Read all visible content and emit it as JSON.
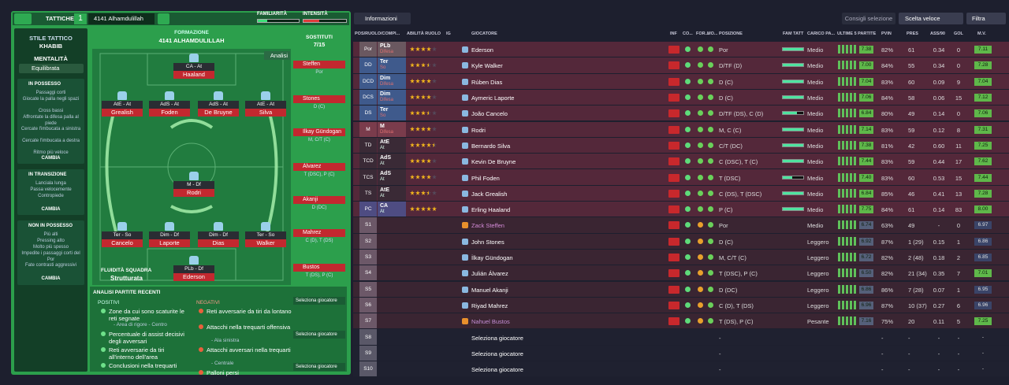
{
  "header": {
    "tab": "TATTICHE",
    "slot": "1",
    "tactic": "4141 Alhamdulillah",
    "familiarity": "FAMILIARITÀ",
    "intensity": "INTENSITÀ"
  },
  "sidebar": {
    "style_label": "STILE TATTICO",
    "style": "KHABIB",
    "mentality_label": "MENTALITÀ",
    "mentality": "Equilibrata",
    "sections": [
      {
        "title": "IN POSSESSO",
        "items": [
          "Passaggi corti",
          "Giocate la palla negli spazi",
          "Cross bassi",
          "Affrontate la difesa palla al piede",
          "Cercate l'imbucata a sinistra",
          "Cercate l'imbucata a destra",
          "Ritmo più veloce"
        ],
        "button": "CAMBIA"
      },
      {
        "title": "IN TRANSIZIONE",
        "items": [
          "Lanciala lunga",
          "Passa velocemente",
          "Contropiede"
        ],
        "button": "CAMBIA"
      },
      {
        "title": "NON IN POSSESSO",
        "items": [
          "Più alti",
          "Pressing alto",
          "Molto più spesso",
          "Impedite i passaggi corti del Por",
          "Fate contrasti aggressivi"
        ],
        "button": "CAMBIA"
      }
    ]
  },
  "pitch": {
    "label": "FORMAZIONE",
    "name": "4141 ALHAMDULILLAH",
    "analysis": "Analisi",
    "subs_label": "SOSTITUTI",
    "subs_count": "7/15",
    "fluidity_label": "FLUIDITÀ SQUADRA",
    "fluidity": "Strutturata",
    "players": [
      {
        "label": "CA - At",
        "name": "Haaland"
      },
      {
        "label": "AtE - At",
        "name": "Grealish"
      },
      {
        "label": "AdS - At",
        "name": "Foden"
      },
      {
        "label": "AdS - At",
        "name": "De Bruyne"
      },
      {
        "label": "AtE - At",
        "name": "Silva"
      },
      {
        "label": "M - Df",
        "name": "Rodri"
      },
      {
        "label": "Ter - So",
        "name": "Cancelo"
      },
      {
        "label": "Dim - Df",
        "name": "Laporte"
      },
      {
        "label": "Dim - Df",
        "name": "Dias"
      },
      {
        "label": "Ter - So",
        "name": "Walker"
      },
      {
        "label": "PLb - Df",
        "name": "Ederson"
      }
    ],
    "subs": [
      {
        "name": "Steffen",
        "pos": "Por"
      },
      {
        "name": "Stones",
        "pos": "D (C)"
      },
      {
        "name": "İlkay Gündogan",
        "pos": "M, C/T (C)"
      },
      {
        "name": "Álvarez",
        "pos": "T (DSC), P (C)"
      },
      {
        "name": "Akanji",
        "pos": "D (DC)"
      },
      {
        "name": "Mahrez",
        "pos": "C (D), T (DS)"
      },
      {
        "name": "Bustos",
        "pos": "T (DS), P (C)"
      },
      {
        "name": "Seleziona giocatore"
      },
      {
        "name": "Seleziona giocatore"
      },
      {
        "name": "Seleziona giocatore"
      }
    ]
  },
  "analysis": {
    "title": "ANALISI PARTITE RECENTI",
    "positive_label": "POSITIVI",
    "negative_label": "NEGATIVI",
    "positive": [
      {
        "text": "Zone da cui sono scaturite le reti segnate",
        "sub": "- Area di rigore - Centro"
      },
      {
        "text": "Percentuale di assist decisivi degli avversari"
      },
      {
        "text": "Reti avversarie da tiri all'interno dell'area"
      },
      {
        "text": "Conclusioni nella trequarti"
      }
    ],
    "negative": [
      {
        "text": "Reti avversarie da tiri da lontano"
      },
      {
        "text": "Attacchi nella trequarti offensiva",
        "sub": "- Ala sinistra"
      },
      {
        "text": "Attacchi avversari nella trequarti",
        "sub": "- Centrale"
      },
      {
        "text": "Palloni persi"
      }
    ]
  },
  "toolbar": {
    "info": "Informazioni",
    "advice": "Consigli selezione",
    "quick": "Scelta veloce",
    "filter": "Filtra"
  },
  "table": {
    "columns": [
      "POS/RUOLO/COMPI...",
      "ABILITÀ RUOLO",
      "IG",
      "GIOCATORE",
      "INF",
      "CO...",
      "FOR...",
      "MO...",
      "POSIZIONE",
      "FAM TATT",
      "CARICO PA...",
      "ULTIME 5 PARTITE",
      "PVIN",
      "PRES",
      "ASS/90",
      "GOL",
      "M.V."
    ],
    "rows": [
      {
        "pos": "Por",
        "role": "PLb",
        "duty": "Difesa",
        "ability": 4,
        "player": "Ederson",
        "position": "Por",
        "load": "Medio",
        "form": "7.38",
        "pvin": "82%",
        "pres": "61",
        "ass": "0.34",
        "gol": "0",
        "mv": "7.11"
      },
      {
        "pos": "DD",
        "role": "Ter",
        "duty": "So",
        "ability": 3.5,
        "player": "Kyle Walker",
        "position": "D/TF (D)",
        "load": "Medio",
        "form": "7.00",
        "pvin": "84%",
        "pres": "55",
        "ass": "0.34",
        "gol": "0",
        "mv": "7.28"
      },
      {
        "pos": "DCD",
        "role": "Dim",
        "duty": "Difesa",
        "ability": 4,
        "player": "Rúben Dias",
        "position": "D (C)",
        "load": "Medio",
        "form": "7.04",
        "pvin": "83%",
        "pres": "60",
        "ass": "0.09",
        "gol": "9",
        "mv": "7.04"
      },
      {
        "pos": "DCS",
        "role": "Dim",
        "duty": "Difesa",
        "ability": 4,
        "player": "Aymeric Laporte",
        "position": "D (C)",
        "load": "Medio",
        "form": "7.06",
        "pvin": "84%",
        "pres": "58",
        "ass": "0.06",
        "gol": "15",
        "mv": "7.12"
      },
      {
        "pos": "DS",
        "role": "Ter",
        "duty": "So",
        "ability": 3.5,
        "player": "João Cancelo",
        "position": "D/TF (DS), C (D)",
        "load": "Medio",
        "form": "6.84",
        "pvin": "80%",
        "pres": "49",
        "ass": "0.14",
        "gol": "0",
        "mv": "7.06"
      },
      {
        "pos": "M",
        "role": "M",
        "duty": "Difesa",
        "ability": 4,
        "player": "Rodri",
        "position": "M, C (C)",
        "load": "Medio",
        "form": "7.14",
        "pvin": "83%",
        "pres": "59",
        "ass": "0.12",
        "gol": "8",
        "mv": "7.31"
      },
      {
        "pos": "TD",
        "role": "AtE",
        "duty": "At",
        "ability": 4.5,
        "player": "Bernardo Silva",
        "position": "C/T (DC)",
        "load": "Medio",
        "form": "7.38",
        "pvin": "81%",
        "pres": "42",
        "ass": "0.60",
        "gol": "11",
        "mv": "7.25"
      },
      {
        "pos": "TCD",
        "role": "AdS",
        "duty": "At",
        "ability": 4,
        "player": "Kevin De Bruyne",
        "position": "C (DSC), T (C)",
        "load": "Medio",
        "form": "7.44",
        "pvin": "83%",
        "pres": "59",
        "ass": "0.44",
        "gol": "17",
        "mv": "7.62"
      },
      {
        "pos": "TCS",
        "role": "AdS",
        "duty": "At",
        "ability": 4,
        "player": "Phil Foden",
        "position": "T (DSC)",
        "load": "Medio",
        "form": "7.40",
        "pvin": "83%",
        "pres": "60",
        "ass": "0.53",
        "gol": "15",
        "mv": "7.44"
      },
      {
        "pos": "TS",
        "role": "AtE",
        "duty": "At",
        "ability": 3.5,
        "player": "Jack Grealish",
        "position": "C (DS), T (DSC)",
        "load": "Medio",
        "form": "6.84",
        "pvin": "85%",
        "pres": "46",
        "ass": "0.41",
        "gol": "13",
        "mv": "7.28"
      },
      {
        "pos": "PC",
        "role": "CA",
        "duty": "At",
        "ability": 5,
        "player": "Erling Haaland",
        "position": "P (C)",
        "load": "Medio",
        "form": "7.75",
        "pvin": "84%",
        "pres": "61",
        "ass": "0.14",
        "gol": "83",
        "mv": "8.00"
      },
      {
        "pos": "S1",
        "player": "Zack Steffen",
        "color": "#d58bd8",
        "position": "Por",
        "load": "Medio",
        "form": "6.74",
        "pvin": "63%",
        "pres": "49",
        "ass": "-",
        "gol": "0",
        "mv": "6.97"
      },
      {
        "pos": "S2",
        "player": "John Stones",
        "position": "D (C)",
        "load": "Leggero",
        "form": "6.92",
        "pvin": "87%",
        "pres": "1 (29)",
        "ass": "0.15",
        "gol": "1",
        "mv": "6.86"
      },
      {
        "pos": "S3",
        "player": "İlkay Gündogan",
        "position": "M, C/T (C)",
        "load": "Leggero",
        "form": "6.72",
        "pvin": "82%",
        "pres": "2 (48)",
        "ass": "0.18",
        "gol": "2",
        "mv": "6.85"
      },
      {
        "pos": "S4",
        "player": "Julián Álvarez",
        "position": "T (DSC), P (C)",
        "load": "Leggero",
        "form": "6.50",
        "pvin": "82%",
        "pres": "21 (34)",
        "ass": "0.35",
        "gol": "7",
        "mv": "7.01"
      },
      {
        "pos": "S5",
        "player": "Manuel Akanji",
        "position": "D (DC)",
        "load": "Leggero",
        "form": "6.86",
        "pvin": "86%",
        "pres": "7 (28)",
        "ass": "0.07",
        "gol": "1",
        "mv": "6.95"
      },
      {
        "pos": "S6",
        "player": "Riyad Mahrez",
        "position": "C (D), T (DS)",
        "load": "Leggero",
        "form": "6.96",
        "pvin": "87%",
        "pres": "10 (37)",
        "ass": "0.27",
        "gol": "6",
        "mv": "6.96"
      },
      {
        "pos": "S7",
        "player": "Nahuel Bustos",
        "color": "#c58fd6",
        "position": "T (DS), P (C)",
        "load": "Pesante",
        "form": "7.16",
        "pvin": "75%",
        "pres": "20",
        "ass": "0.11",
        "gol": "5",
        "mv": "7.25"
      },
      {
        "pos": "S8",
        "player": "Seleziona giocatore",
        "position": "-",
        "pvin": "-",
        "pres": "-",
        "ass": "-",
        "gol": "-",
        "mv": "-"
      },
      {
        "pos": "S9",
        "player": "Seleziona giocatore",
        "position": "-",
        "pvin": "-",
        "pres": "-",
        "ass": "-",
        "gol": "-",
        "mv": "-"
      },
      {
        "pos": "S10",
        "player": "Seleziona giocatore",
        "position": "-",
        "pvin": "-",
        "pres": "-",
        "ass": "-",
        "gol": "-",
        "mv": "-"
      }
    ]
  }
}
